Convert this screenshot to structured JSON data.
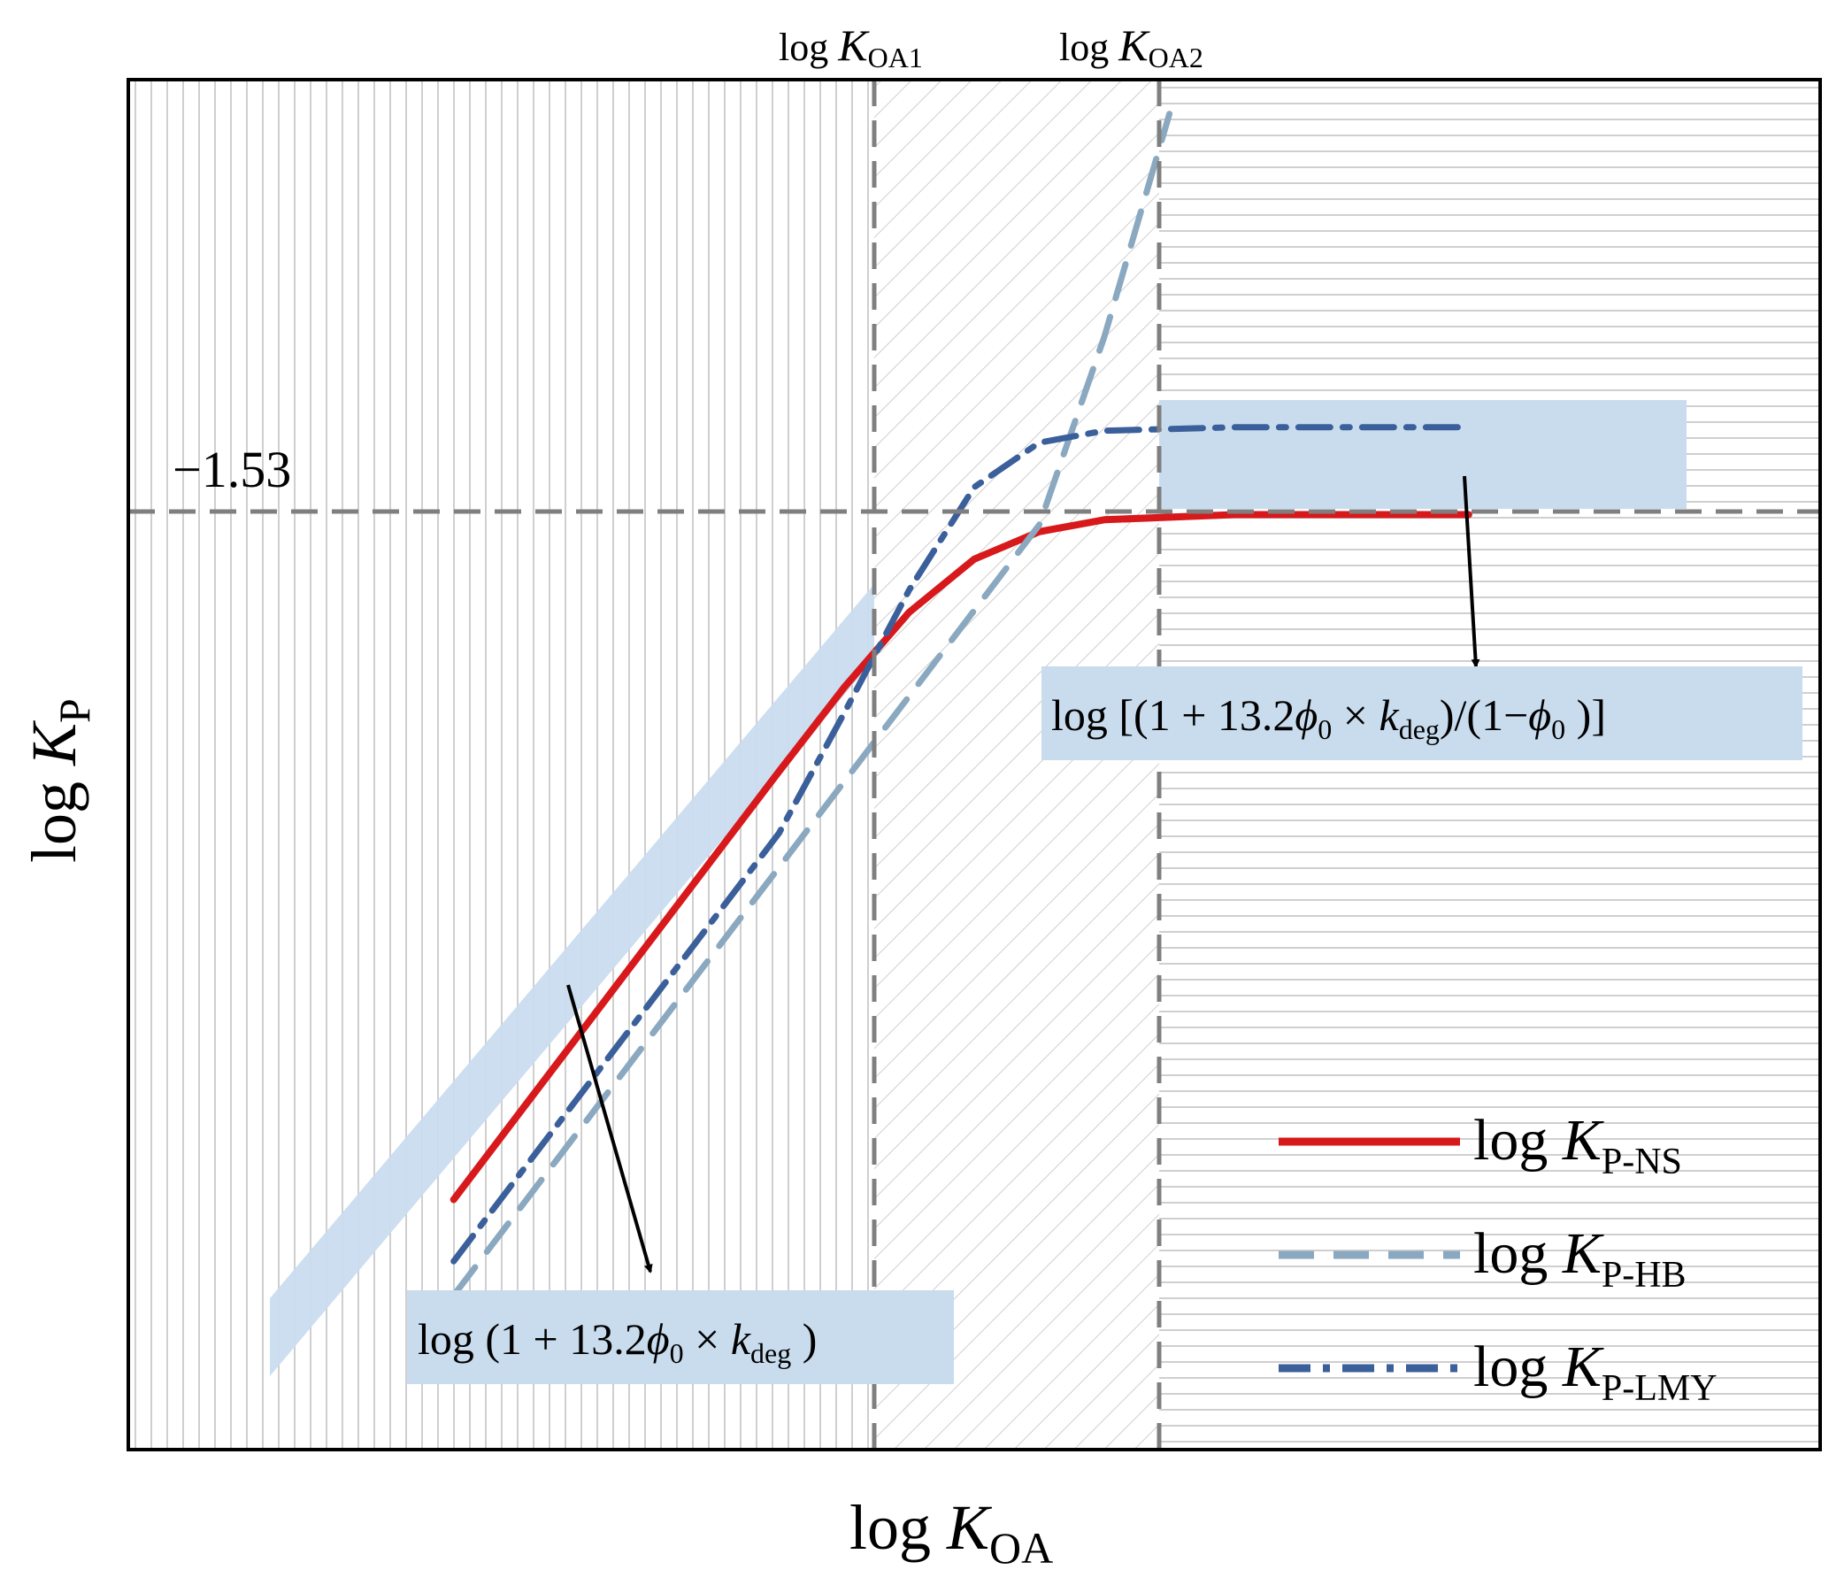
{
  "chart_data": {
    "type": "line",
    "xlabel": {
      "main": "log ",
      "italic": "K",
      "sub": "OA"
    },
    "ylabel": {
      "main": "log ",
      "italic": "K",
      "sub": "P"
    },
    "x_markers": [
      {
        "main": "log ",
        "italic": "K",
        "sub": "OA1"
      },
      {
        "main": "log ",
        "italic": "K",
        "sub": "OA2"
      }
    ],
    "y_reference": {
      "label": "−1.53",
      "value": -1.53
    },
    "regions": [
      {
        "hatch": "vertical",
        "color": "#c8c8c8"
      },
      {
        "hatch": "diagonal",
        "color": "#c8c8c8"
      },
      {
        "hatch": "horizontal",
        "color": "#c8c8c8"
      }
    ],
    "series": [
      {
        "legend": {
          "main": "log ",
          "italic": "K",
          "sub": "P-NS"
        },
        "style": "solid",
        "color": "#d7191c",
        "x": [
          8.0,
          8.5,
          9.0,
          9.5,
          10.0,
          10.5,
          11.0,
          11.5,
          12.0,
          12.5,
          13.0,
          14.0,
          15.0,
          15.8
        ],
        "y": [
          -6.04,
          -5.54,
          -5.04,
          -4.54,
          -4.04,
          -3.54,
          -3.05,
          -2.61,
          -2.3,
          -2.14,
          -2.07,
          -2.04,
          -2.04,
          -2.04
        ]
      },
      {
        "legend": {
          "main": "log ",
          "italic": "K",
          "sub": "P-HB"
        },
        "style": "dashed",
        "color": "#8aa8bf",
        "x": [
          8.0,
          9.0,
          10.0,
          11.0,
          11.5,
          12.0,
          12.5,
          13.0,
          13.5
        ],
        "y": [
          -6.6,
          -5.6,
          -4.6,
          -3.6,
          -3.1,
          -2.6,
          -2.1,
          -1.0,
          0.3
        ]
      },
      {
        "legend": {
          "main": "log ",
          "italic": "K",
          "sub": "P-LMY"
        },
        "style": "dash-dot",
        "color": "#3a5f9a",
        "x": [
          8.0,
          8.5,
          9.0,
          9.5,
          10.0,
          10.5,
          11.0,
          11.5,
          12.0,
          12.5,
          13.0,
          14.0,
          15.0,
          15.8
        ],
        "y": [
          -6.4,
          -5.9,
          -5.4,
          -4.9,
          -4.4,
          -3.9,
          -3.2,
          -2.48,
          -1.88,
          -1.62,
          -1.55,
          -1.53,
          -1.53,
          -1.53
        ]
      }
    ],
    "annotations": [
      {
        "main": "log (1 + 13.2",
        "phi": "ϕ",
        "phi_sub": "0",
        "times": " × ",
        "k": "k",
        "k_sub": "deg",
        "tail": " )"
      },
      {
        "main": "log [(1 + 13.2",
        "phi": "ϕ",
        "phi_sub": "0",
        "times": " × ",
        "k": "k",
        "k_sub": "deg",
        "mid": ")/(1−",
        "phi2": "ϕ",
        "phi2_sub": "0",
        "tail": " )]"
      }
    ]
  }
}
